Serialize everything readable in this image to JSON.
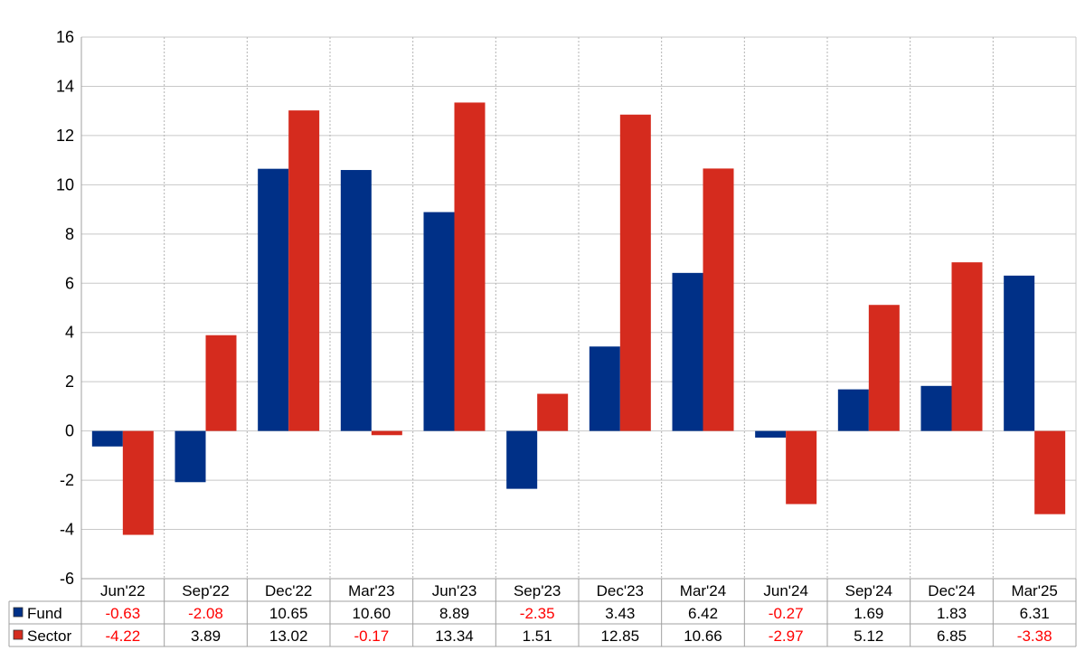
{
  "chart_data": {
    "type": "bar",
    "categories": [
      "Jun'22",
      "Sep'22",
      "Dec'22",
      "Mar'23",
      "Jun'23",
      "Sep'23",
      "Dec'23",
      "Mar'24",
      "Jun'24",
      "Sep'24",
      "Dec'24",
      "Mar'25"
    ],
    "series": [
      {
        "name": "Fund",
        "color": "#003087",
        "values": [
          -0.63,
          -2.08,
          10.65,
          10.6,
          8.89,
          -2.35,
          3.43,
          6.42,
          -0.27,
          1.69,
          1.83,
          6.31
        ],
        "labels": [
          "-0.63",
          "-2.08",
          "10.65",
          "10.60",
          "8.89",
          "-2.35",
          "3.43",
          "6.42",
          "-0.27",
          "1.69",
          "1.83",
          "6.31"
        ]
      },
      {
        "name": "Sector",
        "color": "#d52b1e",
        "values": [
          -4.22,
          3.89,
          13.02,
          -0.17,
          13.34,
          1.51,
          12.85,
          10.66,
          -2.97,
          5.12,
          6.85,
          -3.38
        ],
        "labels": [
          "-4.22",
          "3.89",
          "13.02",
          "-0.17",
          "13.34",
          "1.51",
          "12.85",
          "10.66",
          "-2.97",
          "5.12",
          "6.85",
          "-3.38"
        ]
      }
    ],
    "ylim": [
      -6,
      16
    ],
    "yticks": [
      "-6",
      "-4",
      "-2",
      "0",
      "2",
      "4",
      "6",
      "8",
      "10",
      "12",
      "14",
      "16"
    ],
    "grid": true,
    "legend": "data-table-below",
    "negative_label_color": "#ff0000"
  }
}
